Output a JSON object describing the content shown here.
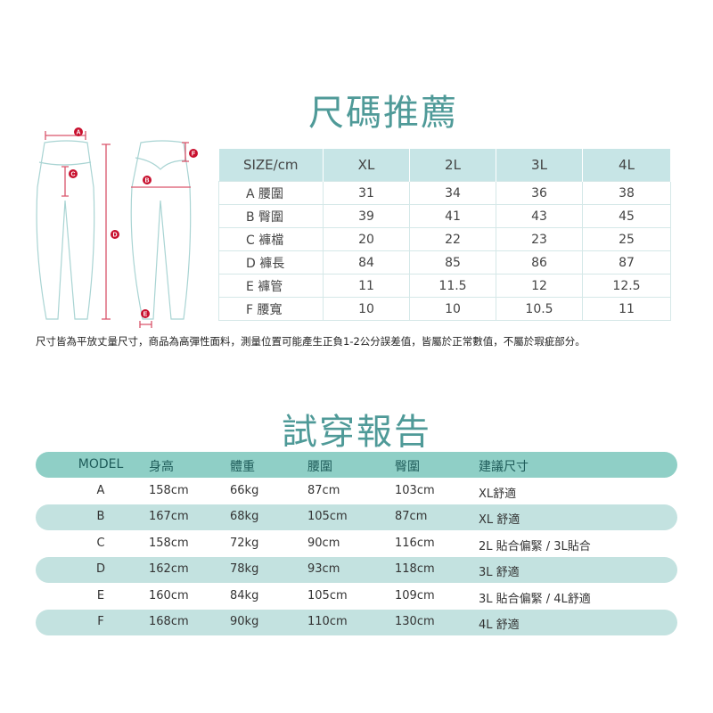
{
  "size_section": {
    "title": "尺碼推薦",
    "diagram_labels": [
      "A",
      "B",
      "C",
      "D",
      "E",
      "F"
    ],
    "headers": [
      "SIZE/cm",
      "XL",
      "2L",
      "3L",
      "4L"
    ],
    "rows": [
      [
        "A 腰圍",
        "31",
        "34",
        "36",
        "38"
      ],
      [
        "B 臀圍",
        "39",
        "41",
        "43",
        "45"
      ],
      [
        "C 褲檔",
        "20",
        "22",
        "23",
        "25"
      ],
      [
        "D 褲長",
        "84",
        "85",
        "86",
        "87"
      ],
      [
        "E 褲管",
        "11",
        "11.5",
        "12",
        "12.5"
      ],
      [
        "F 腰寬",
        "10",
        "10",
        "10.5",
        "11"
      ]
    ],
    "note": "尺寸皆為平放丈量尺寸，商品為高彈性面料，測量位置可能產生正負1-2公分誤差值，皆屬於正常數值，不屬於瑕疵部分。"
  },
  "fit_section": {
    "title": "試穿報告",
    "headers": [
      "MODEL",
      "身高",
      "體重",
      "腰圍",
      "臀圍",
      "建議尺寸"
    ],
    "rows": [
      [
        "A",
        "158cm",
        "66kg",
        "87cm",
        "103cm",
        "XL舒適"
      ],
      [
        "B",
        "167cm",
        "68kg",
        "105cm",
        "87cm",
        "XL 舒適"
      ],
      [
        "C",
        "158cm",
        "72kg",
        "90cm",
        "116cm",
        "2L 貼合偏緊 / 3L貼合"
      ],
      [
        "D",
        "162cm",
        "78kg",
        "93cm",
        "118cm",
        "3L 舒適"
      ],
      [
        "E",
        "160cm",
        "84kg",
        "105cm",
        "109cm",
        "3L 貼合偏緊 / 4L舒適"
      ],
      [
        "F",
        "168cm",
        "90kg",
        "110cm",
        "130cm",
        "4L 舒適"
      ]
    ]
  },
  "colors": {
    "accent": "#4f9a98",
    "header_bg": "#8fcfc6",
    "stripe": "#c3e2e0",
    "marker": "#c8102e"
  }
}
